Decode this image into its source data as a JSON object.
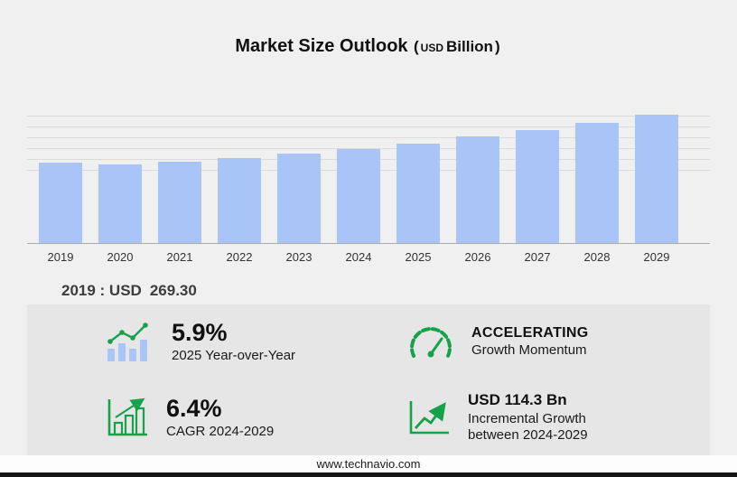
{
  "title": {
    "main": "Market Size Outlook",
    "paren_open": "(",
    "currency": "USD",
    "unit": "Billion",
    "paren_close": ")"
  },
  "chart_data": {
    "type": "bar",
    "title": "Market Size Outlook (USD Billion)",
    "categories": [
      "2019",
      "2020",
      "2021",
      "2022",
      "2023",
      "2024",
      "2025",
      "2026",
      "2027",
      "2028",
      "2029"
    ],
    "values": [
      269.3,
      261.4,
      271.2,
      284.5,
      297.8,
      314.1,
      332.6,
      354.3,
      377.4,
      402.1,
      428.4
    ],
    "xlabel": "",
    "ylabel": "",
    "grid": "horizontal",
    "legend": "none",
    "annotation": "2019 : USD 269.30"
  },
  "annotation": {
    "label": "2019 : USD",
    "value": "269.30"
  },
  "stats": [
    {
      "icon": "trend-bars-icon",
      "value": "5.9%",
      "label": "2025 Year-over-Year"
    },
    {
      "icon": "speedometer-icon",
      "value": "ACCELERATING",
      "label": "Growth Momentum"
    },
    {
      "icon": "growth-chart-icon",
      "value": "6.4%",
      "label": "CAGR 2024-2029"
    },
    {
      "icon": "incremental-growth-icon",
      "value": "USD 114.3 Bn",
      "label": "Incremental Growth between 2024-2029"
    }
  ],
  "footer": {
    "url": "www.technavio.com"
  },
  "colors": {
    "bar": "#a9c4f6",
    "accent_green": "#17a24a",
    "panel_bg": "#e6e6e7",
    "page_bg": "#f0f0f1"
  }
}
